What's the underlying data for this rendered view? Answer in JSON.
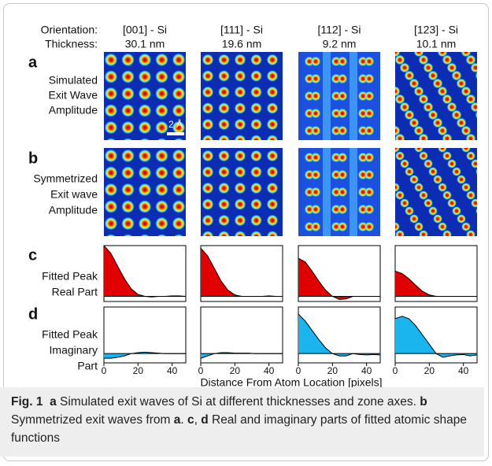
{
  "header": {
    "orientation": "Orientation:",
    "thickness": "Thickness:"
  },
  "columns": [
    {
      "orientation": "[001] - Si",
      "thickness": "30.1 nm"
    },
    {
      "orientation": "[111] - Si",
      "thickness": "19.6 nm"
    },
    {
      "orientation": "[112] - Si",
      "thickness": "9.2 nm"
    },
    {
      "orientation": "[123] - Si",
      "thickness": "10.1 nm"
    }
  ],
  "rows": [
    {
      "letter": "a",
      "label": [
        "Simulated",
        "Exit Wave",
        "Amplitude"
      ]
    },
    {
      "letter": "b",
      "label": [
        "Symmetrized",
        "Exit wave",
        "Amplitude"
      ]
    },
    {
      "letter": "c",
      "label": [
        "Fitted Peak",
        "Real Part"
      ]
    },
    {
      "letter": "d",
      "label": [
        "Fitted Peak",
        "Imaginary",
        "Part"
      ]
    }
  ],
  "scale_bar": "2 Å",
  "plots": {
    "x": [
      0,
      4,
      8,
      12,
      16,
      20,
      24,
      28,
      32,
      36,
      40,
      44,
      48
    ],
    "xlim": [
      0,
      48
    ],
    "xticks": [
      0,
      20,
      40
    ],
    "xlabel": "Distance From Atom Location [pixels]",
    "real": {
      "ylim": [
        -0.1,
        1
      ],
      "color": "#e00000",
      "series": [
        [
          1,
          0.85,
          0.6,
          0.35,
          0.15,
          0.04,
          0,
          -0.01,
          0,
          0,
          0.01,
          0.01,
          0
        ],
        [
          0.95,
          0.8,
          0.55,
          0.3,
          0.12,
          0.03,
          0,
          0,
          0,
          0,
          0.01,
          0,
          0
        ],
        [
          0.75,
          0.68,
          0.5,
          0.3,
          0.12,
          0,
          -0.06,
          -0.05,
          0,
          0,
          0,
          0,
          0
        ],
        [
          0.5,
          0.45,
          0.35,
          0.22,
          0.1,
          0.03,
          0,
          0,
          0,
          0,
          0,
          0,
          0
        ]
      ]
    },
    "imaginary": {
      "ylim": [
        -0.2,
        1
      ],
      "color": "#1ab4ee",
      "series": [
        [
          -0.1,
          -0.1,
          -0.08,
          -0.05,
          0,
          0.02,
          0.03,
          0.02,
          0.01,
          0,
          0,
          0,
          0
        ],
        [
          -0.1,
          -0.05,
          0,
          0.02,
          0.02,
          0.01,
          0.01,
          0.01,
          0,
          0,
          0,
          0,
          0
        ],
        [
          0.85,
          0.7,
          0.5,
          0.3,
          0.12,
          0,
          -0.05,
          -0.05,
          0,
          -0.02,
          -0.03,
          -0.02,
          -0.03
        ],
        [
          0.75,
          0.8,
          0.75,
          0.6,
          0.4,
          0.2,
          0,
          -0.08,
          -0.05,
          -0.03,
          -0.02,
          -0.05,
          -0.03
        ]
      ]
    }
  },
  "caption": [
    {
      "text": "Fig. 1",
      "bold": true
    },
    {
      "text": "  a",
      "bold": true
    },
    {
      "text": " Simulated exit waves of Si at different thicknesses and zone axes. "
    },
    {
      "text": "b",
      "bold": true
    },
    {
      "text": " Symmetrized exit waves from "
    },
    {
      "text": "a",
      "bold": true
    },
    {
      "text": ". "
    },
    {
      "text": "c",
      "bold": true
    },
    {
      "text": ", "
    },
    {
      "text": "d",
      "bold": true
    },
    {
      "text": " Real and imaginary parts of fitted atomic shape functions"
    }
  ]
}
